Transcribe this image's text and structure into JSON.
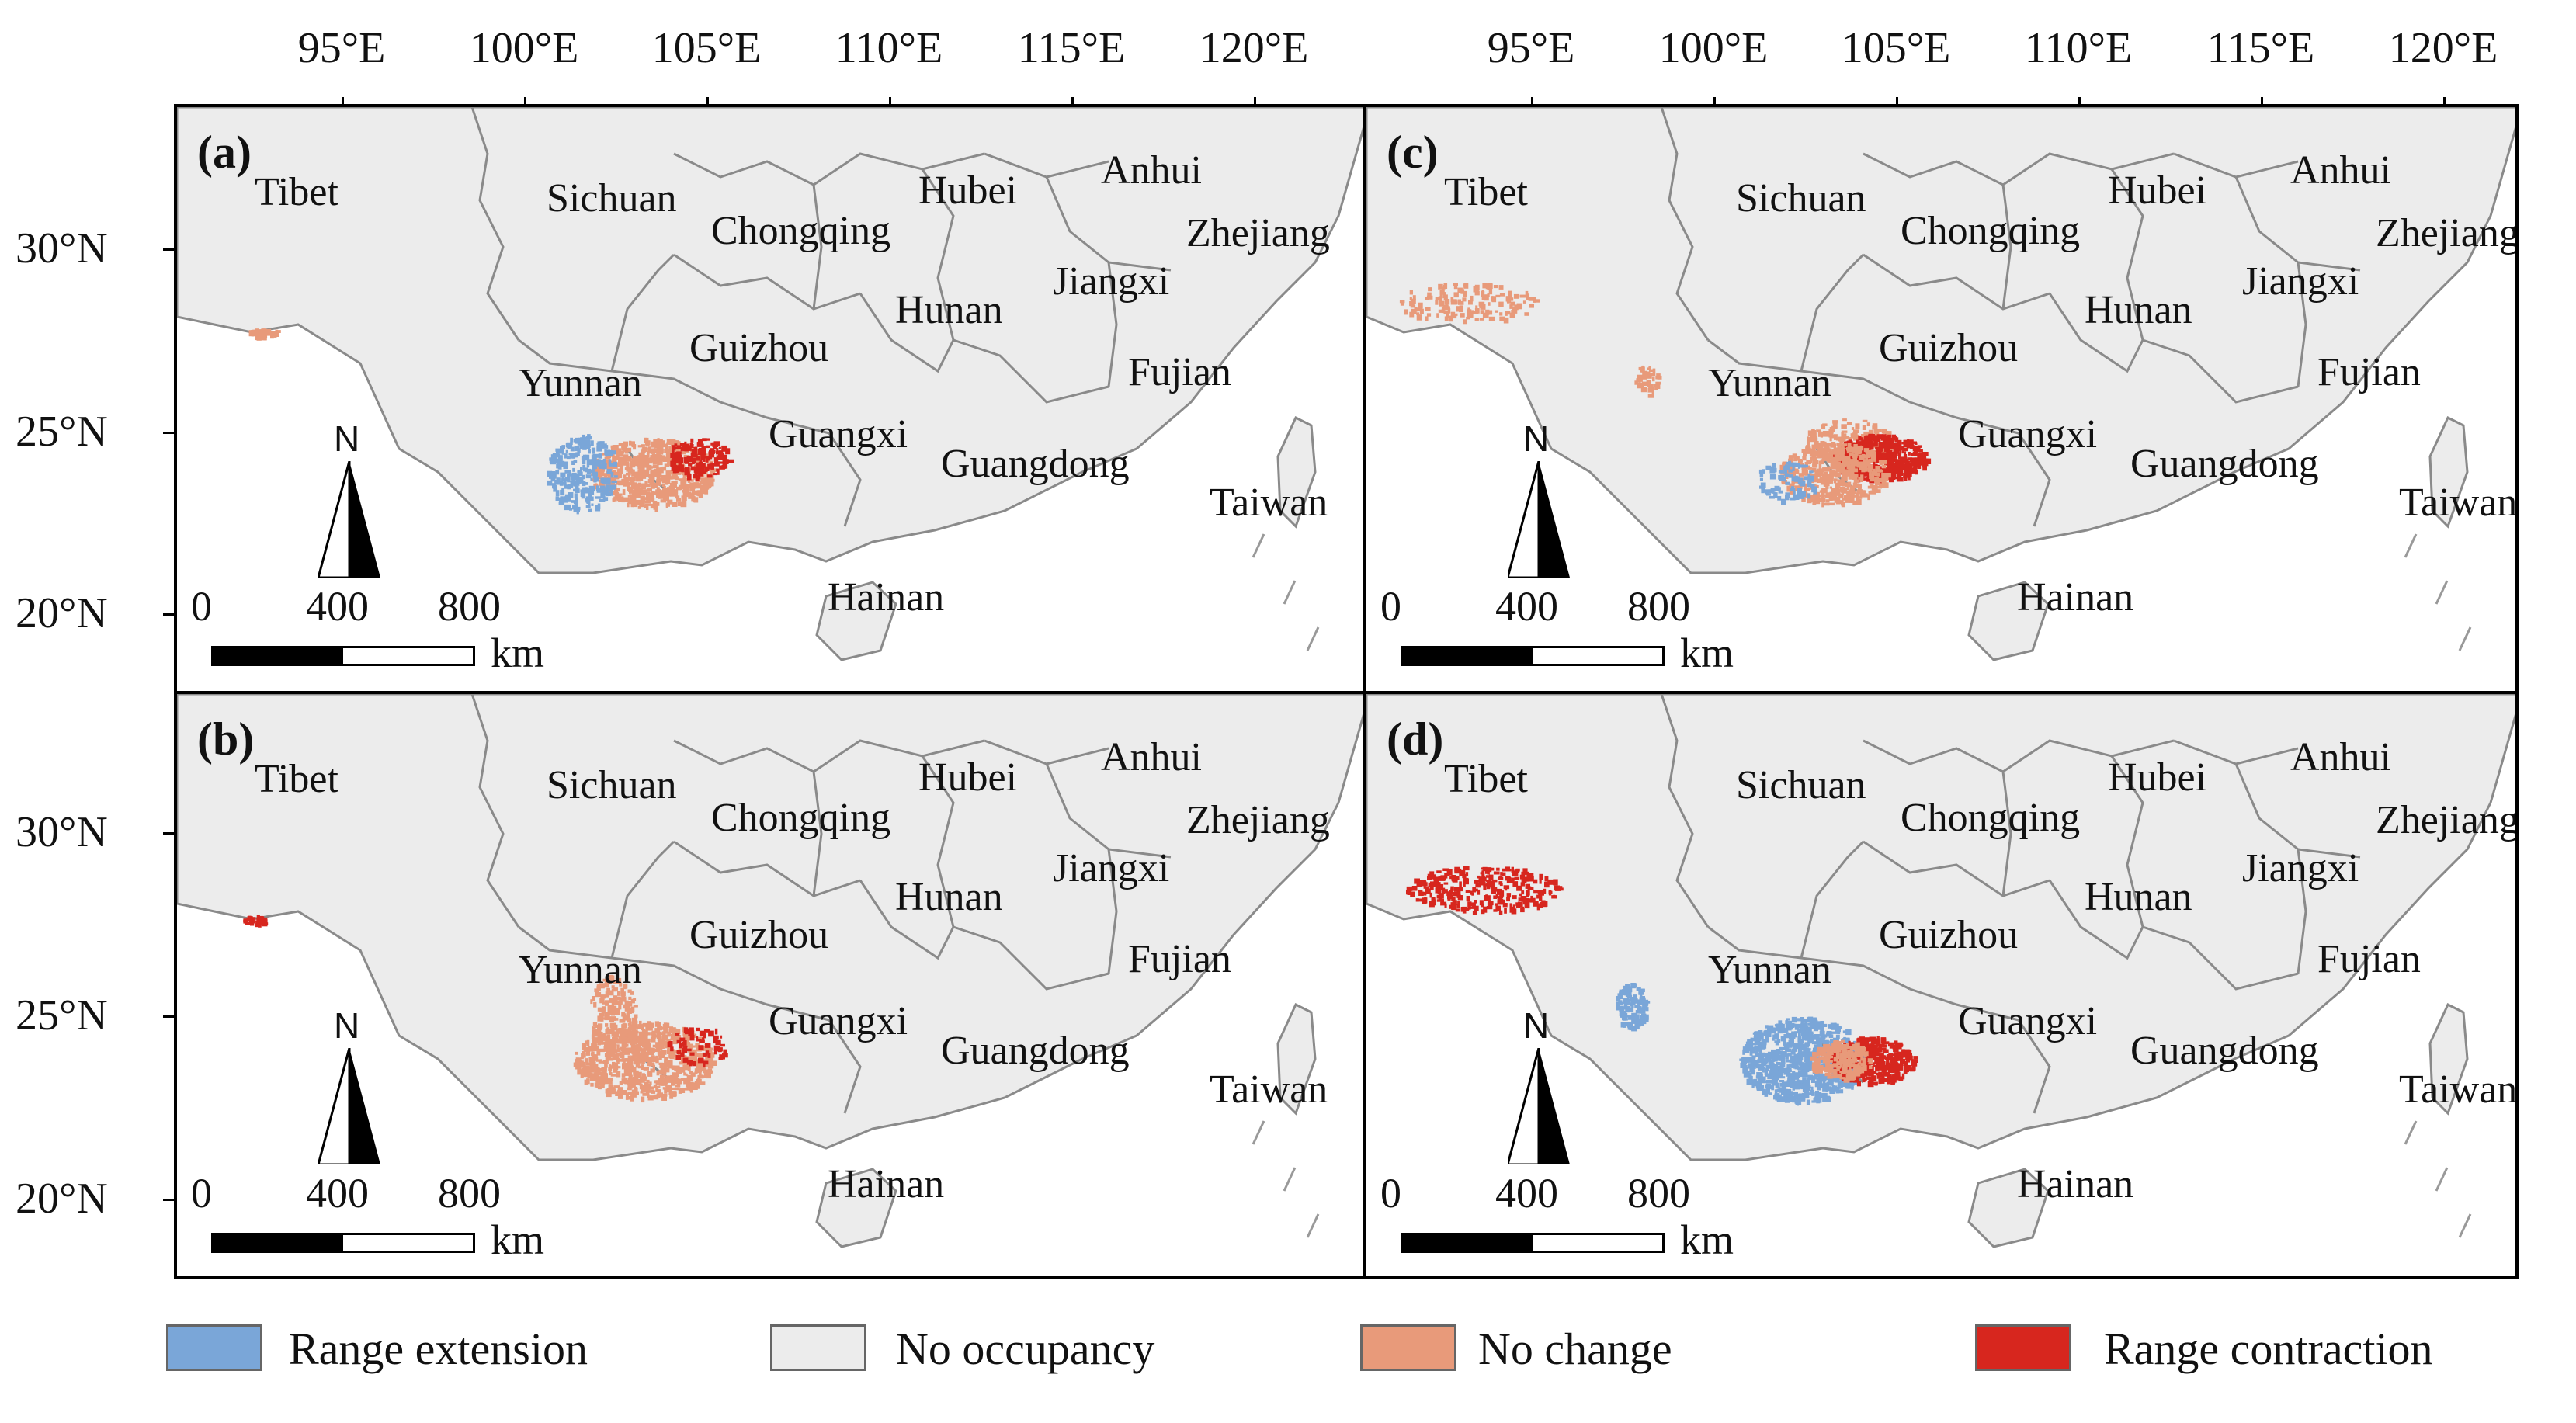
{
  "axes": {
    "longitude_ticks": [
      "95°E",
      "100°E",
      "105°E",
      "110°E",
      "115°E",
      "120°E"
    ],
    "latitude_ticks": [
      "30°N",
      "25°N",
      "20°N"
    ]
  },
  "panels": [
    {
      "label": "(a)",
      "province_labels": [
        "Tibet",
        "Sichuan",
        "Hubei",
        "Anhui",
        "Chongqing",
        "Zhejiang",
        "Jiangxi",
        "Hunan",
        "Guizhou",
        "Fujian",
        "Yunnan",
        "Guangxi",
        "Guangdong",
        "Taiwan",
        "Hainan"
      ]
    },
    {
      "label": "(b)",
      "province_labels": [
        "Tibet",
        "Sichuan",
        "Hubei",
        "Anhui",
        "Chongqing",
        "Zhejiang",
        "Jiangxi",
        "Hunan",
        "Guizhou",
        "Fujian",
        "Yunnan",
        "Guangxi",
        "Guangdong",
        "Taiwan",
        "Hainan"
      ]
    },
    {
      "label": "(c)",
      "province_labels": [
        "Tibet",
        "Sichuan",
        "Hubei",
        "Anhui",
        "Chongqing",
        "Zhejiang",
        "Jiangxi",
        "Hunan",
        "Guizhou",
        "Fujian",
        "Yunnan",
        "Guangxi",
        "Guangdong",
        "Taiwan",
        "Hainan"
      ]
    },
    {
      "label": "(d)",
      "province_labels": [
        "Tibet",
        "Sichuan",
        "Hubei",
        "Anhui",
        "Chongqing",
        "Zhejiang",
        "Jiangxi",
        "Hunan",
        "Guizhou",
        "Fujian",
        "Yunnan",
        "Guangxi",
        "Guangdong",
        "Taiwan",
        "Hainan"
      ]
    }
  ],
  "north_arrow": {
    "letter": "N"
  },
  "scale_bar": {
    "labels": [
      "0",
      "400",
      "800"
    ],
    "unit": "km"
  },
  "legend": [
    {
      "label": "Range extension",
      "color": "#7aa6d8"
    },
    {
      "label": "No occupancy",
      "color": "#ececec"
    },
    {
      "label": "No change",
      "color": "#e89a7a"
    },
    {
      "label": "Range contraction",
      "color": "#d7261e"
    }
  ],
  "colors": {
    "land": "#ececec",
    "border": "#8a8a8a",
    "sea": "#ffffff"
  }
}
